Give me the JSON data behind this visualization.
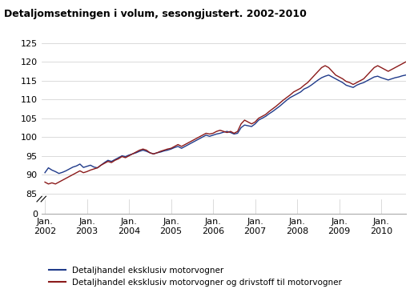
{
  "title": "Detaljomsetningen i volum, sesongjustert. 2002-2010",
  "legend_blue": "Detaljhandel eksklusiv motorvogner",
  "legend_red": "Detaljhandel eksklusiv motorvogner og drivstoff til motorvogner",
  "color_blue": "#1F3A8A",
  "color_red": "#8B1A1A",
  "background_color": "#ffffff",
  "blue_series": [
    90.5,
    91.8,
    91.2,
    90.8,
    90.3,
    90.6,
    91.0,
    91.5,
    92.0,
    92.3,
    92.8,
    91.9,
    92.2,
    92.5,
    92.0,
    91.8,
    92.5,
    93.2,
    93.8,
    93.5,
    94.0,
    94.5,
    95.0,
    94.8,
    95.2,
    95.5,
    95.8,
    96.2,
    96.5,
    96.2,
    95.8,
    95.5,
    95.8,
    96.0,
    96.3,
    96.5,
    96.8,
    97.2,
    97.5,
    97.0,
    97.5,
    98.0,
    98.5,
    99.0,
    99.5,
    100.0,
    100.5,
    100.2,
    100.5,
    100.8,
    101.0,
    101.3,
    101.5,
    101.2,
    100.8,
    101.0,
    102.5,
    103.2,
    103.0,
    102.8,
    103.5,
    104.5,
    105.0,
    105.5,
    106.2,
    106.8,
    107.5,
    108.2,
    109.0,
    109.8,
    110.5,
    111.0,
    111.5,
    112.0,
    112.8,
    113.2,
    113.8,
    114.5,
    115.2,
    115.8,
    116.2,
    116.5,
    116.0,
    115.5,
    115.0,
    114.5,
    113.8,
    113.5,
    113.2,
    113.8,
    114.2,
    114.5,
    115.0,
    115.5,
    116.0,
    116.2,
    115.8,
    115.5,
    115.2,
    115.5,
    115.8,
    116.0,
    116.3,
    116.5
  ],
  "red_series": [
    88.0,
    87.5,
    87.8,
    87.5,
    88.0,
    88.5,
    89.0,
    89.5,
    90.0,
    90.5,
    91.0,
    90.5,
    90.8,
    91.2,
    91.5,
    91.8,
    92.5,
    93.0,
    93.5,
    93.2,
    93.8,
    94.2,
    94.8,
    94.5,
    95.0,
    95.5,
    96.0,
    96.5,
    96.8,
    96.5,
    95.8,
    95.5,
    95.8,
    96.2,
    96.5,
    96.8,
    97.0,
    97.5,
    98.0,
    97.5,
    98.0,
    98.5,
    99.0,
    99.5,
    100.0,
    100.5,
    101.0,
    100.8,
    101.0,
    101.5,
    101.8,
    101.5,
    101.2,
    101.5,
    101.0,
    101.5,
    103.5,
    104.5,
    104.0,
    103.5,
    104.0,
    105.0,
    105.5,
    106.0,
    106.8,
    107.5,
    108.2,
    109.0,
    109.8,
    110.5,
    111.2,
    112.0,
    112.5,
    113.0,
    113.8,
    114.5,
    115.5,
    116.5,
    117.5,
    118.5,
    119.0,
    118.5,
    117.5,
    116.5,
    116.0,
    115.5,
    114.8,
    114.5,
    114.0,
    114.5,
    115.0,
    115.5,
    116.5,
    117.5,
    118.5,
    119.0,
    118.5,
    118.0,
    117.5,
    118.0,
    118.5,
    119.0,
    119.5,
    120.0
  ],
  "xtick_positions": [
    0,
    12,
    24,
    36,
    48,
    60,
    72,
    84,
    96
  ],
  "xtick_labels": [
    "Jan.\n2002",
    "Jan.\n2003",
    "Jan.\n2004",
    "Jan.\n2005",
    "Jan.\n2006",
    "Jan.\n2007",
    "Jan.\n2008",
    "Jan.\n2009",
    "Jan.\n2010"
  ],
  "yticks_main": [
    85,
    90,
    95,
    100,
    105,
    110,
    115,
    120,
    125
  ],
  "ylim_main_bottom": 83.5,
  "ylim_main_top": 127,
  "grid_color": "#cccccc",
  "spine_color": "#aaaaaa"
}
